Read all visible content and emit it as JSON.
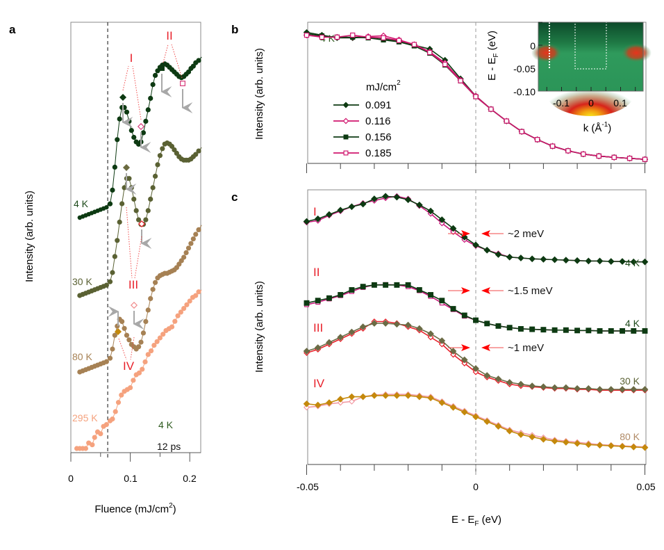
{
  "chart_data": [
    {
      "panel": "a",
      "type": "scatter",
      "panel_label": "a",
      "xlabel": "Fluence (mJ/cm",
      "xlabel_sup": "2",
      "xlabel_end": ")",
      "ylabel": "Intensity (arb. units)",
      "xlim": [
        0,
        0.22
      ],
      "xticks": [
        0,
        0.1,
        0.2
      ],
      "xtick_labels": [
        "0",
        "0.1",
        "0.2"
      ],
      "threshold_line_x": 0.062,
      "annotations": {
        "temp": "4 K",
        "delay": "12 ps"
      },
      "feature_labels": [
        "I",
        "II",
        "III",
        "IV"
      ],
      "series": [
        {
          "name": "4 K",
          "color": "#0d3a12",
          "x": [
            0.015,
            0.02,
            0.025,
            0.03,
            0.035,
            0.04,
            0.045,
            0.05,
            0.055,
            0.06,
            0.066,
            0.07,
            0.074,
            0.078,
            0.082,
            0.086,
            0.09,
            0.094,
            0.098,
            0.102,
            0.106,
            0.11,
            0.114,
            0.118,
            0.122,
            0.126,
            0.13,
            0.134,
            0.138,
            0.142,
            0.146,
            0.15,
            0.154,
            0.158,
            0.162,
            0.166,
            0.17,
            0.174,
            0.178,
            0.182,
            0.186,
            0.19,
            0.194,
            0.198,
            0.202,
            0.206,
            0.21,
            0.215,
            0.22
          ],
          "y": [
            0.0,
            0.005,
            0.01,
            0.015,
            0.02,
            0.025,
            0.03,
            0.035,
            0.04,
            0.045,
            0.06,
            0.12,
            0.22,
            0.34,
            0.43,
            0.48,
            0.48,
            0.46,
            0.42,
            0.38,
            0.35,
            0.33,
            0.32,
            0.33,
            0.37,
            0.42,
            0.47,
            0.52,
            0.58,
            0.62,
            0.64,
            0.655,
            0.665,
            0.67,
            0.665,
            0.655,
            0.645,
            0.635,
            0.625,
            0.615,
            0.61,
            0.615,
            0.625,
            0.635,
            0.65,
            0.66,
            0.675,
            0.685,
            0.7
          ]
        },
        {
          "name": "30 K",
          "color": "#5a6133",
          "x": [
            0.015,
            0.02,
            0.025,
            0.03,
            0.035,
            0.04,
            0.045,
            0.05,
            0.055,
            0.06,
            0.066,
            0.07,
            0.074,
            0.078,
            0.082,
            0.086,
            0.09,
            0.094,
            0.098,
            0.102,
            0.106,
            0.11,
            0.114,
            0.118,
            0.122,
            0.126,
            0.13,
            0.134,
            0.138,
            0.142,
            0.146,
            0.15,
            0.154,
            0.158,
            0.162,
            0.166,
            0.17,
            0.174,
            0.178,
            0.182,
            0.186,
            0.19,
            0.194,
            0.198,
            0.202,
            0.206,
            0.21,
            0.215,
            0.22
          ],
          "y": [
            0.0,
            0.005,
            0.01,
            0.015,
            0.02,
            0.025,
            0.03,
            0.035,
            0.04,
            0.045,
            0.06,
            0.1,
            0.17,
            0.24,
            0.32,
            0.4,
            0.47,
            0.51,
            0.51,
            0.47,
            0.42,
            0.37,
            0.33,
            0.31,
            0.31,
            0.33,
            0.37,
            0.42,
            0.47,
            0.52,
            0.57,
            0.61,
            0.64,
            0.66,
            0.665,
            0.66,
            0.65,
            0.635,
            0.62,
            0.605,
            0.595,
            0.59,
            0.59,
            0.59,
            0.595,
            0.605,
            0.615,
            0.63,
            0.645
          ]
        },
        {
          "name": "80 K",
          "color": "#a68154",
          "x": [
            0.015,
            0.02,
            0.025,
            0.03,
            0.035,
            0.04,
            0.045,
            0.05,
            0.055,
            0.06,
            0.066,
            0.07,
            0.074,
            0.078,
            0.082,
            0.086,
            0.09,
            0.094,
            0.098,
            0.102,
            0.106,
            0.11,
            0.114,
            0.118,
            0.122,
            0.126,
            0.13,
            0.134,
            0.138,
            0.142,
            0.146,
            0.15,
            0.154,
            0.158,
            0.162,
            0.166,
            0.17,
            0.174,
            0.178,
            0.182,
            0.186,
            0.19,
            0.194,
            0.198,
            0.202,
            0.206,
            0.21,
            0.215,
            0.22
          ],
          "y": [
            0.0,
            0.005,
            0.01,
            0.015,
            0.02,
            0.025,
            0.03,
            0.035,
            0.04,
            0.045,
            0.06,
            0.1,
            0.16,
            0.2,
            0.23,
            0.22,
            0.19,
            0.16,
            0.14,
            0.12,
            0.11,
            0.1,
            0.11,
            0.13,
            0.17,
            0.22,
            0.27,
            0.32,
            0.36,
            0.39,
            0.41,
            0.42,
            0.425,
            0.43,
            0.43,
            0.435,
            0.44,
            0.445,
            0.455,
            0.47,
            0.485,
            0.5,
            0.52,
            0.54,
            0.56,
            0.58,
            0.6,
            0.62,
            0.64
          ]
        },
        {
          "name": "295 K",
          "color": "#f5a27e",
          "x": [
            0.01,
            0.015,
            0.02,
            0.025,
            0.03,
            0.036,
            0.04,
            0.045,
            0.05,
            0.055,
            0.06,
            0.066,
            0.07,
            0.075,
            0.08,
            0.085,
            0.09,
            0.095,
            0.1,
            0.105,
            0.11,
            0.115,
            0.12,
            0.125,
            0.13,
            0.135,
            0.14,
            0.145,
            0.15,
            0.155,
            0.16,
            0.165,
            0.17,
            0.175,
            0.18,
            0.185,
            0.19,
            0.195,
            0.2,
            0.205,
            0.21,
            0.215,
            0.22
          ],
          "y": [
            0.0,
            0.0,
            0.0,
            0.0,
            0.03,
            0.02,
            0.06,
            0.09,
            0.08,
            0.12,
            0.13,
            0.15,
            0.16,
            0.2,
            0.25,
            0.29,
            0.31,
            0.32,
            0.33,
            0.37,
            0.4,
            0.41,
            0.43,
            0.47,
            0.51,
            0.53,
            0.56,
            0.58,
            0.6,
            0.62,
            0.64,
            0.65,
            0.66,
            0.69,
            0.72,
            0.74,
            0.76,
            0.78,
            0.8,
            0.82,
            0.83,
            0.85,
            0.86
          ]
        }
      ],
      "markers": [
        {
          "label": "I",
          "symbol": "filled-diamond",
          "color": "#0d3a12",
          "x": 0.091
        },
        {
          "label": "I",
          "symbol": "open-diamond",
          "color": "#d63a7a",
          "x": 0.116
        },
        {
          "label": "II",
          "symbol": "filled-square",
          "color": "#0d3a12",
          "x": 0.156
        },
        {
          "label": "II",
          "symbol": "open-square",
          "color": "#d63a7a",
          "x": 0.185
        },
        {
          "label": "III",
          "symbol": "filled-diamond",
          "color": "#6b6b40",
          "x": 0.091
        },
        {
          "label": "III",
          "symbol": "open-diamond",
          "color": "#e8202a",
          "x": 0.116
        },
        {
          "label": "IV",
          "symbol": "filled-diamond",
          "color": "#c4890c",
          "x": 0.085
        },
        {
          "label": "IV",
          "symbol": "open-diamond",
          "color": "#f08a8a",
          "x": 0.116
        }
      ]
    },
    {
      "panel": "b",
      "type": "line",
      "panel_label": "b",
      "ylabel": "Intensity (arb. units)",
      "xlim": [
        -0.05,
        0.05
      ],
      "temp_label": "4 K",
      "legend_title": "mJ/cm",
      "legend_title_sup": "2",
      "legend_position": "center-left",
      "legend": [
        {
          "label": "0.091",
          "color": "#0d3a12",
          "marker": "filled-diamond"
        },
        {
          "label": "0.116",
          "color": "#d0166e",
          "marker": "open-diamond"
        },
        {
          "label": "0.156",
          "color": "#0d3a12",
          "marker": "filled-square"
        },
        {
          "label": "0.185",
          "color": "#d0166e",
          "marker": "open-square"
        }
      ],
      "x": [
        -0.05,
        -0.0455,
        -0.041,
        -0.0364,
        -0.0318,
        -0.0273,
        -0.0227,
        -0.0182,
        -0.0136,
        -0.0091,
        -0.0045,
        0.0,
        0.0045,
        0.0091,
        0.0136,
        0.0182,
        0.0227,
        0.0273,
        0.0318,
        0.0364,
        0.0409,
        0.0455,
        0.05
      ],
      "y_common": [
        0.96,
        0.95,
        0.945,
        0.95,
        0.95,
        0.94,
        0.925,
        0.9,
        0.85,
        0.75,
        0.62,
        0.5,
        0.4,
        0.31,
        0.23,
        0.17,
        0.12,
        0.085,
        0.06,
        0.045,
        0.035,
        0.028,
        0.02
      ],
      "inset": {
        "type": "heatmap",
        "ylabel": "E - E",
        "ylabel_sub": "F",
        "ylabel_end": " (eV)",
        "xlabel": "k (Å",
        "xlabel_sup": "-1",
        "xlabel_end": ")",
        "xlim": [
          -0.17,
          0.17
        ],
        "ylim": [
          -0.1,
          0.04
        ],
        "xtick_labels": [
          "-0.1",
          "0",
          "0.1"
        ],
        "xticks": [
          -0.1,
          0,
          0.1
        ],
        "ytick_labels": [
          "0",
          "-0.05",
          "-0.10"
        ],
        "yticks": [
          0,
          -0.05,
          -0.1
        ]
      }
    },
    {
      "panel": "c",
      "type": "line",
      "panel_label": "c",
      "ylabel": "Intensity (arb. units)",
      "xlabel": "E - E",
      "xlabel_sub": "F",
      "xlabel_end": " (eV)",
      "xlim": [
        -0.05,
        0.05
      ],
      "xtick_labels": [
        "-0.05",
        "0",
        "0.05"
      ],
      "xticks": [
        -0.05,
        0,
        0.05
      ],
      "groups": [
        {
          "label": "I",
          "temp": "4 K",
          "shift": "~2 meV",
          "colorA": "#0d3a12",
          "colorB": "#c8177a",
          "marker": "diamond",
          "ya": [
            0.62,
            0.65,
            0.7,
            0.75,
            0.79,
            0.82,
            0.88,
            0.91,
            0.9,
            0.87,
            0.81,
            0.74,
            0.64,
            0.54,
            0.44,
            0.35,
            0.29,
            0.24,
            0.21,
            0.2,
            0.19,
            0.185,
            0.18,
            0.175,
            0.17,
            0.165,
            0.165,
            0.16,
            0.16,
            0.155,
            0.155
          ],
          "yb": [
            0.61,
            0.63,
            0.69,
            0.74,
            0.79,
            0.83,
            0.86,
            0.89,
            0.91,
            0.88,
            0.8,
            0.71,
            0.6,
            0.5,
            0.41,
            0.34,
            0.29,
            0.25,
            0.21,
            0.2,
            0.19,
            0.185,
            0.18,
            0.175,
            0.17,
            0.165,
            0.165,
            0.16,
            0.16,
            0.155,
            0.155
          ]
        },
        {
          "label": "II",
          "temp": "4 K",
          "shift": "~1.5 meV",
          "colorA": "#0d3a12",
          "colorB": "#c8177a",
          "marker": "square",
          "ya": [
            0.4,
            0.43,
            0.46,
            0.5,
            0.56,
            0.6,
            0.62,
            0.62,
            0.62,
            0.62,
            0.56,
            0.5,
            0.43,
            0.33,
            0.25,
            0.19,
            0.15,
            0.12,
            0.1,
            0.085,
            0.08,
            0.075,
            0.07,
            0.07,
            0.065,
            0.065,
            0.06,
            0.06,
            0.06,
            0.06,
            0.06
          ],
          "yb": [
            0.38,
            0.41,
            0.45,
            0.49,
            0.54,
            0.59,
            0.62,
            0.625,
            0.62,
            0.6,
            0.55,
            0.48,
            0.4,
            0.32,
            0.24,
            0.19,
            0.15,
            0.12,
            0.1,
            0.085,
            0.08,
            0.075,
            0.07,
            0.07,
            0.065,
            0.065,
            0.06,
            0.06,
            0.06,
            0.06,
            0.06
          ]
        },
        {
          "label": "III",
          "temp": "30 K",
          "shift": "~1 meV",
          "colorA": "#6b6b45",
          "colorB": "#e8202a",
          "marker": "diamond",
          "ya": [
            0.22,
            0.24,
            0.27,
            0.3,
            0.33,
            0.36,
            0.38,
            0.38,
            0.375,
            0.37,
            0.35,
            0.32,
            0.28,
            0.22,
            0.17,
            0.12,
            0.08,
            0.06,
            0.04,
            0.03,
            0.02,
            0.015,
            0.01,
            0.01,
            0.005,
            0.005,
            0.0,
            0.0,
            0.0,
            0.0,
            0.0
          ],
          "yb": [
            0.21,
            0.23,
            0.26,
            0.29,
            0.32,
            0.35,
            0.39,
            0.39,
            0.38,
            0.36,
            0.34,
            0.3,
            0.26,
            0.2,
            0.15,
            0.1,
            0.07,
            0.05,
            0.03,
            0.02,
            0.015,
            0.01,
            0.005,
            0.005,
            0.0,
            0.0,
            -0.005,
            -0.005,
            -0.005,
            -0.005,
            -0.005
          ]
        },
        {
          "label": "IV",
          "temp": "80 K",
          "shift": "",
          "colorA": "#c4890c",
          "colorB": "#f29aa3",
          "marker": "diamond",
          "ya": [
            0.36,
            0.35,
            0.37,
            0.4,
            0.42,
            0.42,
            0.43,
            0.43,
            0.43,
            0.43,
            0.42,
            0.41,
            0.37,
            0.33,
            0.29,
            0.25,
            0.21,
            0.17,
            0.13,
            0.1,
            0.08,
            0.06,
            0.045,
            0.035,
            0.025,
            0.015,
            0.01,
            0.005,
            0.0,
            -0.005,
            -0.01
          ],
          "yb": [
            0.33,
            0.34,
            0.36,
            0.37,
            0.38,
            0.42,
            0.435,
            0.44,
            0.44,
            0.44,
            0.43,
            0.42,
            0.38,
            0.34,
            0.3,
            0.26,
            0.22,
            0.18,
            0.14,
            0.115,
            0.095,
            0.075,
            0.055,
            0.045,
            0.035,
            0.025,
            0.015,
            0.01,
            0.005,
            0.0,
            -0.005
          ]
        }
      ]
    }
  ]
}
